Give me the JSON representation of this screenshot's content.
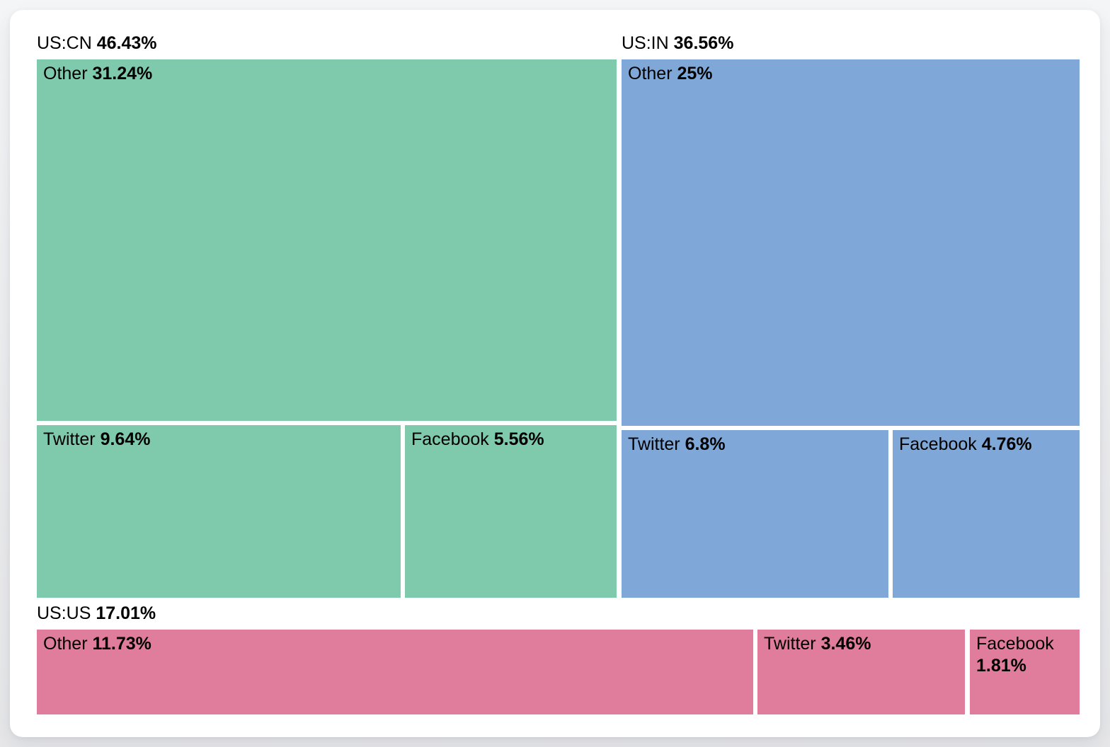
{
  "chart_data": {
    "type": "treemap",
    "unit": "%",
    "title": "",
    "legend_position": "none",
    "tile_gap_color": "#ffffff",
    "text_color": "#000000",
    "groups": [
      {
        "label": "US:CN",
        "value": 46.43,
        "pct_text": "46.43%",
        "color": "#7fc9ac",
        "children": [
          {
            "label": "Other",
            "value": 31.24,
            "pct_text": "31.24%"
          },
          {
            "label": "Twitter",
            "value": 9.64,
            "pct_text": "9.64%"
          },
          {
            "label": "Facebook",
            "value": 5.56,
            "pct_text": "5.56%"
          }
        ]
      },
      {
        "label": "US:IN",
        "value": 36.56,
        "pct_text": "36.56%",
        "color": "#7fa8d8",
        "children": [
          {
            "label": "Other",
            "value": 25,
            "pct_text": "25%"
          },
          {
            "label": "Twitter",
            "value": 6.8,
            "pct_text": "6.8%"
          },
          {
            "label": "Facebook",
            "value": 4.76,
            "pct_text": "4.76%"
          }
        ]
      },
      {
        "label": "US:US",
        "value": 17.01,
        "pct_text": "17.01%",
        "color": "#e07d9d",
        "children": [
          {
            "label": "Other",
            "value": 11.73,
            "pct_text": "11.73%"
          },
          {
            "label": "Twitter",
            "value": 3.46,
            "pct_text": "3.46%"
          },
          {
            "label": "Facebook",
            "value": 1.81,
            "pct_text": "1.81%"
          }
        ]
      }
    ]
  }
}
